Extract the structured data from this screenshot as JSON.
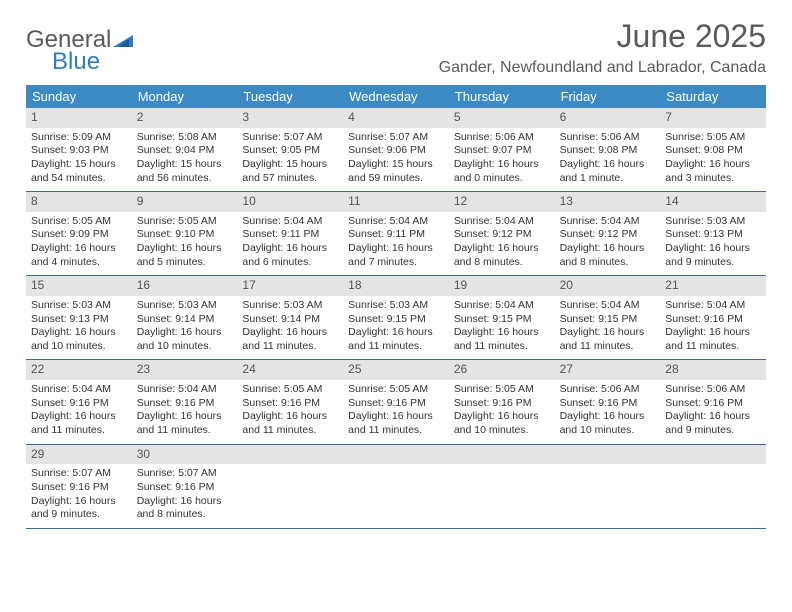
{
  "logo": {
    "word1": "General",
    "word2": "Blue"
  },
  "title": "June 2025",
  "location": "Gander, Newfoundland and Labrador, Canada",
  "colors": {
    "header_bg": "#3b8ac4",
    "header_text": "#ffffff",
    "daynum_bg": "#e4e4e4",
    "week_border": "#3b6a9a",
    "text": "#333333",
    "title_text": "#5a5a5a",
    "logo_blue": "#2e7cc1"
  },
  "weekdays": [
    "Sunday",
    "Monday",
    "Tuesday",
    "Wednesday",
    "Thursday",
    "Friday",
    "Saturday"
  ],
  "weeks": [
    [
      {
        "n": "1",
        "sr": "Sunrise: 5:09 AM",
        "ss": "Sunset: 9:03 PM",
        "d1": "Daylight: 15 hours",
        "d2": "and 54 minutes."
      },
      {
        "n": "2",
        "sr": "Sunrise: 5:08 AM",
        "ss": "Sunset: 9:04 PM",
        "d1": "Daylight: 15 hours",
        "d2": "and 56 minutes."
      },
      {
        "n": "3",
        "sr": "Sunrise: 5:07 AM",
        "ss": "Sunset: 9:05 PM",
        "d1": "Daylight: 15 hours",
        "d2": "and 57 minutes."
      },
      {
        "n": "4",
        "sr": "Sunrise: 5:07 AM",
        "ss": "Sunset: 9:06 PM",
        "d1": "Daylight: 15 hours",
        "d2": "and 59 minutes."
      },
      {
        "n": "5",
        "sr": "Sunrise: 5:06 AM",
        "ss": "Sunset: 9:07 PM",
        "d1": "Daylight: 16 hours",
        "d2": "and 0 minutes."
      },
      {
        "n": "6",
        "sr": "Sunrise: 5:06 AM",
        "ss": "Sunset: 9:08 PM",
        "d1": "Daylight: 16 hours",
        "d2": "and 1 minute."
      },
      {
        "n": "7",
        "sr": "Sunrise: 5:05 AM",
        "ss": "Sunset: 9:08 PM",
        "d1": "Daylight: 16 hours",
        "d2": "and 3 minutes."
      }
    ],
    [
      {
        "n": "8",
        "sr": "Sunrise: 5:05 AM",
        "ss": "Sunset: 9:09 PM",
        "d1": "Daylight: 16 hours",
        "d2": "and 4 minutes."
      },
      {
        "n": "9",
        "sr": "Sunrise: 5:05 AM",
        "ss": "Sunset: 9:10 PM",
        "d1": "Daylight: 16 hours",
        "d2": "and 5 minutes."
      },
      {
        "n": "10",
        "sr": "Sunrise: 5:04 AM",
        "ss": "Sunset: 9:11 PM",
        "d1": "Daylight: 16 hours",
        "d2": "and 6 minutes."
      },
      {
        "n": "11",
        "sr": "Sunrise: 5:04 AM",
        "ss": "Sunset: 9:11 PM",
        "d1": "Daylight: 16 hours",
        "d2": "and 7 minutes."
      },
      {
        "n": "12",
        "sr": "Sunrise: 5:04 AM",
        "ss": "Sunset: 9:12 PM",
        "d1": "Daylight: 16 hours",
        "d2": "and 8 minutes."
      },
      {
        "n": "13",
        "sr": "Sunrise: 5:04 AM",
        "ss": "Sunset: 9:12 PM",
        "d1": "Daylight: 16 hours",
        "d2": "and 8 minutes."
      },
      {
        "n": "14",
        "sr": "Sunrise: 5:03 AM",
        "ss": "Sunset: 9:13 PM",
        "d1": "Daylight: 16 hours",
        "d2": "and 9 minutes."
      }
    ],
    [
      {
        "n": "15",
        "sr": "Sunrise: 5:03 AM",
        "ss": "Sunset: 9:13 PM",
        "d1": "Daylight: 16 hours",
        "d2": "and 10 minutes."
      },
      {
        "n": "16",
        "sr": "Sunrise: 5:03 AM",
        "ss": "Sunset: 9:14 PM",
        "d1": "Daylight: 16 hours",
        "d2": "and 10 minutes."
      },
      {
        "n": "17",
        "sr": "Sunrise: 5:03 AM",
        "ss": "Sunset: 9:14 PM",
        "d1": "Daylight: 16 hours",
        "d2": "and 11 minutes."
      },
      {
        "n": "18",
        "sr": "Sunrise: 5:03 AM",
        "ss": "Sunset: 9:15 PM",
        "d1": "Daylight: 16 hours",
        "d2": "and 11 minutes."
      },
      {
        "n": "19",
        "sr": "Sunrise: 5:04 AM",
        "ss": "Sunset: 9:15 PM",
        "d1": "Daylight: 16 hours",
        "d2": "and 11 minutes."
      },
      {
        "n": "20",
        "sr": "Sunrise: 5:04 AM",
        "ss": "Sunset: 9:15 PM",
        "d1": "Daylight: 16 hours",
        "d2": "and 11 minutes."
      },
      {
        "n": "21",
        "sr": "Sunrise: 5:04 AM",
        "ss": "Sunset: 9:16 PM",
        "d1": "Daylight: 16 hours",
        "d2": "and 11 minutes."
      }
    ],
    [
      {
        "n": "22",
        "sr": "Sunrise: 5:04 AM",
        "ss": "Sunset: 9:16 PM",
        "d1": "Daylight: 16 hours",
        "d2": "and 11 minutes."
      },
      {
        "n": "23",
        "sr": "Sunrise: 5:04 AM",
        "ss": "Sunset: 9:16 PM",
        "d1": "Daylight: 16 hours",
        "d2": "and 11 minutes."
      },
      {
        "n": "24",
        "sr": "Sunrise: 5:05 AM",
        "ss": "Sunset: 9:16 PM",
        "d1": "Daylight: 16 hours",
        "d2": "and 11 minutes."
      },
      {
        "n": "25",
        "sr": "Sunrise: 5:05 AM",
        "ss": "Sunset: 9:16 PM",
        "d1": "Daylight: 16 hours",
        "d2": "and 11 minutes."
      },
      {
        "n": "26",
        "sr": "Sunrise: 5:05 AM",
        "ss": "Sunset: 9:16 PM",
        "d1": "Daylight: 16 hours",
        "d2": "and 10 minutes."
      },
      {
        "n": "27",
        "sr": "Sunrise: 5:06 AM",
        "ss": "Sunset: 9:16 PM",
        "d1": "Daylight: 16 hours",
        "d2": "and 10 minutes."
      },
      {
        "n": "28",
        "sr": "Sunrise: 5:06 AM",
        "ss": "Sunset: 9:16 PM",
        "d1": "Daylight: 16 hours",
        "d2": "and 9 minutes."
      }
    ],
    [
      {
        "n": "29",
        "sr": "Sunrise: 5:07 AM",
        "ss": "Sunset: 9:16 PM",
        "d1": "Daylight: 16 hours",
        "d2": "and 9 minutes."
      },
      {
        "n": "30",
        "sr": "Sunrise: 5:07 AM",
        "ss": "Sunset: 9:16 PM",
        "d1": "Daylight: 16 hours",
        "d2": "and 8 minutes."
      },
      {
        "empty": true
      },
      {
        "empty": true
      },
      {
        "empty": true
      },
      {
        "empty": true
      },
      {
        "empty": true
      }
    ]
  ]
}
